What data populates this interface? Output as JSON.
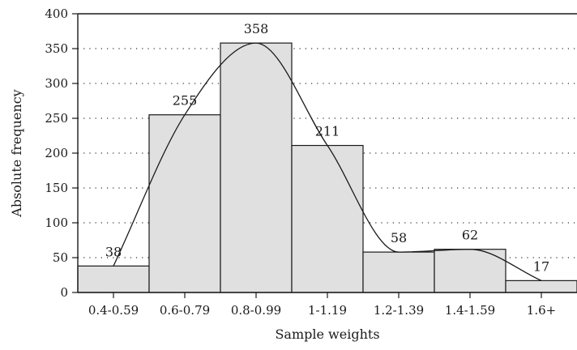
{
  "chart_data": {
    "type": "bar",
    "title": "",
    "xlabel": "Sample weights",
    "ylabel": "Absolute frequency",
    "categories": [
      "0.4-0.59",
      "0.6-0.79",
      "0.8-0.99",
      "1-1.19",
      "1.2-1.39",
      "1.4-1.59",
      "1.6+"
    ],
    "values": [
      38,
      255,
      358,
      211,
      58,
      62,
      17
    ],
    "data_labels": [
      "38",
      "255",
      "358",
      "211",
      "58",
      "62",
      "17"
    ],
    "ylim": [
      0,
      400
    ],
    "yticks": [
      0,
      50,
      100,
      150,
      200,
      250,
      300,
      350,
      400
    ],
    "ytick_labels": [
      "0",
      "50",
      "100",
      "150",
      "200",
      "250",
      "300",
      "350",
      "400"
    ],
    "grid": "horizontal dotted",
    "overlay_curve": "smoothed frequency curve",
    "bar_color": "#e0e0e0",
    "line_color": "#1a1a1a"
  }
}
